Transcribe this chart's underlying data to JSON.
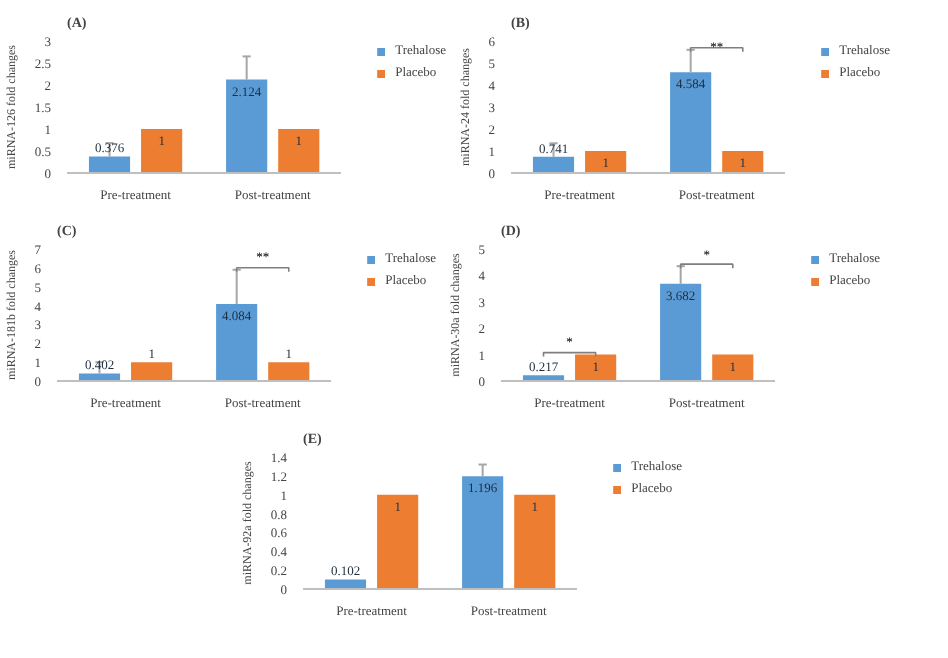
{
  "chart_data": [
    {
      "type": "bar",
      "title": "(A)",
      "ylabel": "miRNA-126 fold changes",
      "categories": [
        "Pre-treatment",
        "Post-treatment"
      ],
      "ylim": [
        0,
        3
      ],
      "yticks": [
        0,
        0.5,
        1,
        1.5,
        2,
        2.5,
        3
      ],
      "grid": false,
      "legend": "right",
      "data_labels": true,
      "series": [
        {
          "name": "Trehalose",
          "color": "#5b9bd5",
          "values": [
            0.376,
            2.124
          ],
          "errors": [
            [
              0.376,
              0.68
            ],
            [
              2.124,
              2.65
            ]
          ]
        },
        {
          "name": "Placebo",
          "color": "#ed7d31",
          "values": [
            1,
            1
          ]
        }
      ]
    },
    {
      "type": "bar",
      "title": "(B)",
      "ylabel": "miRNA-24 fold changes",
      "categories": [
        "Pre-treatment",
        "Post-treatment"
      ],
      "ylim": [
        0,
        6
      ],
      "yticks": [
        0,
        1,
        2,
        3,
        4,
        5,
        6
      ],
      "grid": false,
      "legend": "right",
      "data_labels": true,
      "annotations": [
        "**"
      ],
      "series": [
        {
          "name": "Trehalose",
          "color": "#5b9bd5",
          "values": [
            0.741,
            4.584
          ],
          "errors": [
            [
              0.741,
              1.35
            ],
            [
              4.584,
              5.6
            ]
          ]
        },
        {
          "name": "Placebo",
          "color": "#ed7d31",
          "values": [
            1,
            1
          ]
        }
      ]
    },
    {
      "type": "bar",
      "title": "(C)",
      "ylabel": "miRNA-181b fold changes",
      "categories": [
        "Pre-treatment",
        "Post-treatment"
      ],
      "ylim": [
        0,
        7
      ],
      "yticks": [
        0,
        1,
        2,
        3,
        4,
        5,
        6,
        7
      ],
      "grid": false,
      "legend": "right",
      "data_labels": true,
      "annotations": [
        "**"
      ],
      "series": [
        {
          "name": "Trehalose",
          "color": "#5b9bd5",
          "values": [
            0.402,
            4.084
          ],
          "errors": [
            [
              0.402,
              1.0
            ],
            [
              4.084,
              5.9
            ]
          ]
        },
        {
          "name": "Placebo",
          "color": "#ed7d31",
          "values": [
            1,
            1
          ]
        }
      ]
    },
    {
      "type": "bar",
      "title": "(D)",
      "ylabel": "miRNA-30a fold changes",
      "categories": [
        "Pre-treatment",
        "Post-treatment"
      ],
      "ylim": [
        0,
        5
      ],
      "yticks": [
        0,
        1,
        2,
        3,
        4,
        5
      ],
      "grid": false,
      "legend": "right",
      "data_labels": true,
      "annotations": [
        "*",
        "*"
      ],
      "series": [
        {
          "name": "Trehalose",
          "color": "#5b9bd5",
          "values": [
            0.217,
            3.682
          ],
          "errors": [
            null,
            [
              3.682,
              4.35
            ]
          ]
        },
        {
          "name": "Placebo",
          "color": "#ed7d31",
          "values": [
            1,
            1
          ]
        }
      ]
    },
    {
      "type": "bar",
      "title": "(E)",
      "ylabel": "miRNA-92a fold changes",
      "categories": [
        "Pre-treatment",
        "Post-treatment"
      ],
      "ylim": [
        0,
        1.4
      ],
      "yticks": [
        0,
        0.2,
        0.4,
        0.6,
        0.8,
        1,
        1.2,
        1.4
      ],
      "grid": false,
      "legend": "right",
      "data_labels": true,
      "series": [
        {
          "name": "Trehalose",
          "color": "#5b9bd5",
          "values": [
            0.102,
            1.196
          ],
          "errors": [
            null,
            [
              1.196,
              1.32
            ]
          ]
        },
        {
          "name": "Placebo",
          "color": "#ed7d31",
          "values": [
            1,
            1
          ]
        }
      ]
    }
  ]
}
